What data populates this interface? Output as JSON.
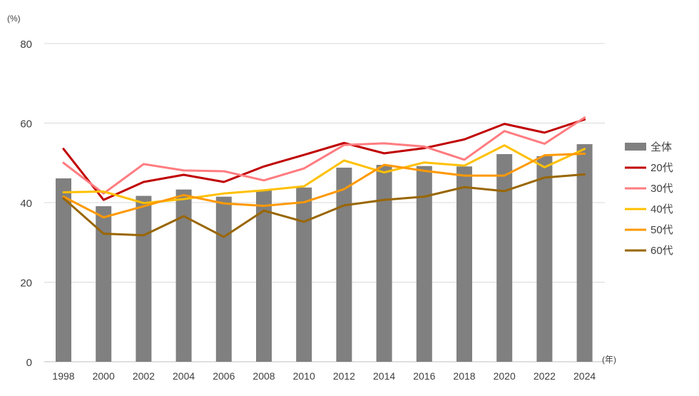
{
  "chart_data": {
    "type": "bar+line",
    "y_unit_label": "(%)",
    "x_unit_label": "(年)",
    "ylim": [
      0,
      80
    ],
    "y_ticks": [
      "0",
      "20",
      "40",
      "60",
      "80"
    ],
    "grid": true,
    "legend_position": "right",
    "categories": [
      "1998",
      "2000",
      "2002",
      "2004",
      "2006",
      "2008",
      "2010",
      "2012",
      "2014",
      "2016",
      "2018",
      "2020",
      "2022",
      "2024"
    ],
    "bar_series": {
      "name": "全体",
      "color": "#808080",
      "values": [
        46.1,
        39.1,
        41.7,
        43.3,
        41.5,
        43.1,
        43.8,
        48.8,
        49.5,
        49.2,
        49.1,
        52.2,
        51.7,
        54.7
      ]
    },
    "line_series": [
      {
        "name": "20代",
        "color": "#C00000",
        "values": [
          53.5,
          40.7,
          45.2,
          47.0,
          45.2,
          49.1,
          52.0,
          55.0,
          52.4,
          53.7,
          55.9,
          59.8,
          57.6,
          60.9
        ]
      },
      {
        "name": "30代",
        "color": "#FF7C80",
        "values": [
          50.0,
          42.3,
          49.7,
          48.1,
          47.9,
          45.6,
          48.6,
          54.5,
          54.9,
          54.1,
          50.8,
          58.0,
          54.8,
          61.4
        ]
      },
      {
        "name": "40代",
        "color": "#FFC000",
        "values": [
          42.6,
          42.8,
          39.9,
          40.9,
          42.3,
          43.1,
          44.1,
          50.6,
          47.6,
          50.1,
          49.3,
          54.4,
          48.9,
          53.5
        ]
      },
      {
        "name": "50代",
        "color": "#FF9900",
        "values": [
          41.5,
          36.3,
          39.1,
          41.9,
          39.8,
          39.2,
          40.1,
          43.4,
          49.5,
          48.0,
          46.8,
          46.8,
          51.9,
          52.3
        ]
      },
      {
        "name": "60代",
        "color": "#996600",
        "values": [
          41.1,
          32.2,
          31.8,
          36.6,
          31.4,
          38.0,
          35.2,
          39.3,
          40.7,
          41.5,
          43.9,
          42.9,
          46.3,
          47.1
        ]
      }
    ]
  }
}
